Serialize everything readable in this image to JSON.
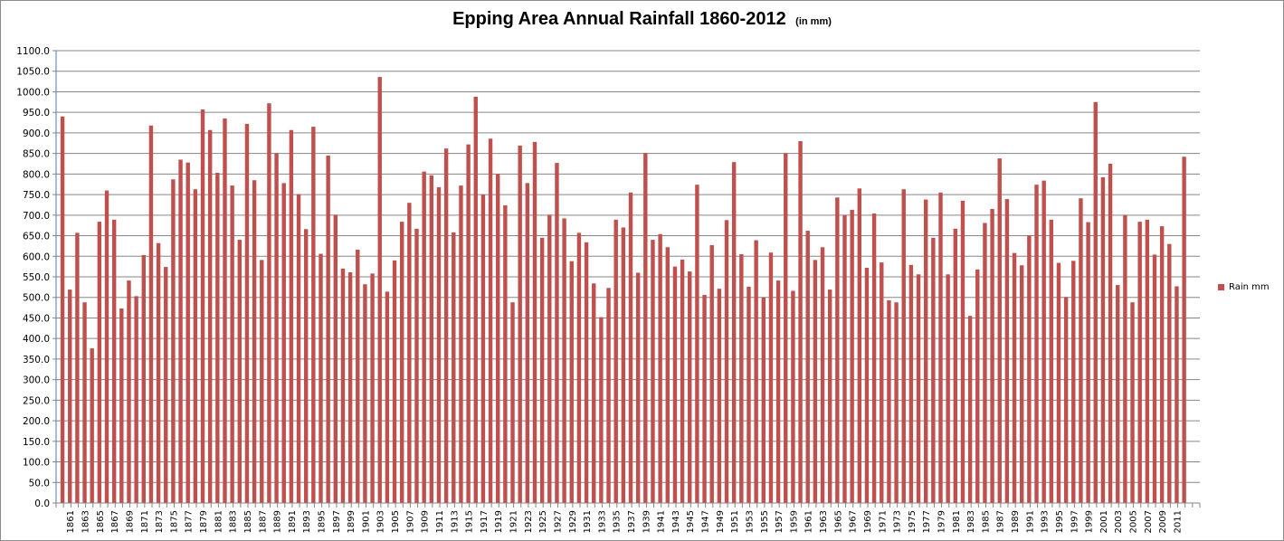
{
  "chart_data": {
    "type": "bar",
    "title": "Epping Area Annual Rainfall  1860-2012",
    "subtitle": "(in mm)",
    "xlabel": "",
    "ylabel": "",
    "ylim": [
      0,
      1100
    ],
    "yticks": [
      0,
      50,
      100,
      150,
      200,
      250,
      300,
      350,
      400,
      450,
      500,
      550,
      600,
      650,
      700,
      750,
      800,
      850,
      900,
      950,
      1000,
      1050,
      1100
    ],
    "ytick_format": "one-decimal",
    "grid": true,
    "legend": "right",
    "x_label_every": 2,
    "x_label_first": 1861,
    "series": [
      {
        "name": "Rain mm",
        "color": "#c0504d",
        "x_start": 1860,
        "values": [
          940,
          519,
          657,
          488,
          376,
          684,
          760,
          689,
          473,
          541,
          503,
          603,
          918,
          632,
          574,
          787,
          835,
          828,
          763,
          957,
          907,
          803,
          935,
          772,
          640,
          922,
          785,
          591,
          972,
          851,
          778,
          907,
          751,
          666,
          915,
          606,
          845,
          701,
          570,
          561,
          616,
          532,
          558,
          1036,
          514,
          590,
          684,
          730,
          667,
          806,
          797,
          768,
          862,
          658,
          772,
          872,
          988,
          750,
          886,
          800,
          724,
          488,
          869,
          778,
          878,
          645,
          701,
          827,
          692,
          588,
          657,
          634,
          534,
          452,
          523,
          689,
          670,
          755,
          560,
          851,
          640,
          654,
          622,
          575,
          592,
          563,
          774,
          506,
          627,
          521,
          688,
          829,
          605,
          526,
          639,
          500,
          609,
          541,
          851,
          516,
          880,
          662,
          591,
          622,
          519,
          743,
          700,
          713,
          765,
          572,
          704,
          585,
          493,
          488,
          763,
          579,
          556,
          738,
          645,
          755,
          556,
          667,
          735,
          455,
          568,
          681,
          715,
          838,
          739,
          608,
          578,
          651,
          774,
          784,
          689,
          584,
          501,
          589,
          741,
          683,
          975,
          792,
          825,
          530,
          700,
          488,
          684,
          689,
          604,
          673,
          630,
          527,
          842
        ]
      }
    ]
  },
  "legend": {
    "label": "Rain mm"
  }
}
